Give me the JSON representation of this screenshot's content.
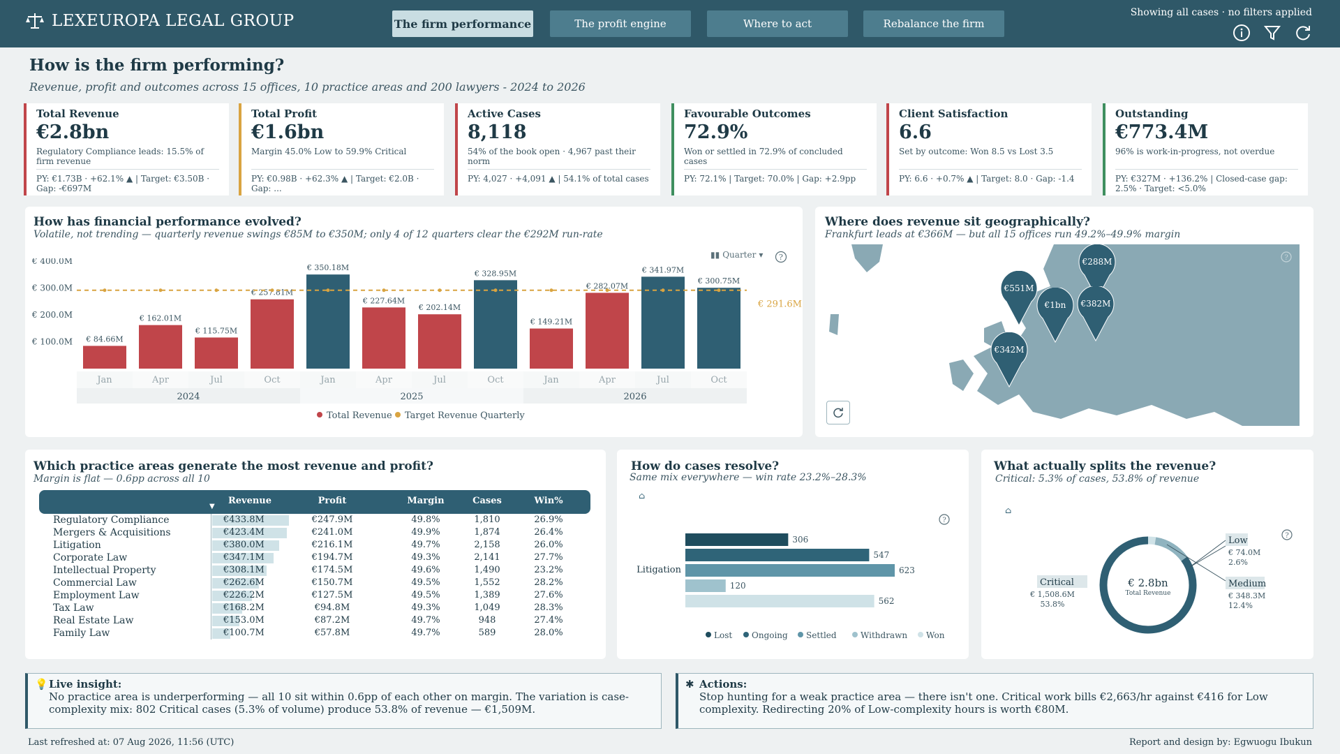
{
  "header": {
    "brand": "LEXEUROPA LEGAL GROUP",
    "tabs": [
      "The firm performance",
      "The profit engine",
      "Where to act",
      "Rebalance the firm"
    ],
    "status": "Showing all cases · no filters applied",
    "icons": [
      "info-icon",
      "filter-icon",
      "refresh-icon"
    ]
  },
  "page": {
    "title": "How is the firm performing?",
    "subtitle": "Revenue, profit and outcomes across 15 offices, 10 practice areas and 200 lawyers - 2024 to 2026"
  },
  "kpis": [
    {
      "label": "Total Revenue",
      "value": "€2.8bn",
      "note": "Regulatory Compliance leads: 15.5% of firm revenue",
      "py": "PY: €1.73B · +62.1% ▲ | Target: €3.50B · Gap: -€697M",
      "color": "#c0454a"
    },
    {
      "label": "Total Profit",
      "value": "€1.6bn",
      "note": "Margin 45.0% Low to 59.9% Critical",
      "py": "PY: €0.98B · +62.3% ▲ | Target: €2.0B · Gap: ...",
      "color": "#d9a441"
    },
    {
      "label": "Active Cases",
      "value": "8,118",
      "note": "54% of the book open · 4,967 past their norm",
      "py": "PY: 4,027 · +4,091 ▲ | 54.1% of total cases",
      "color": "#c0454a"
    },
    {
      "label": "Favourable Outcomes",
      "value": "72.9%",
      "note": "Won or settled in 72.9% of concluded cases",
      "py": "PY: 72.1% | Target: 70.0% | Gap: +2.9pp",
      "color": "#3f8f5f"
    },
    {
      "label": "Client Satisfaction",
      "value": "6.6",
      "note": "Set by outcome: Won 8.5 vs Lost 3.5",
      "py": "PY: 6.6 · +0.7% ▲ | Target: 8.0 · Gap: -1.4",
      "color": "#c0454a"
    },
    {
      "label": "Outstanding",
      "value": "€773.4M",
      "note": "96% is work-in-progress, not overdue",
      "py": "PY: €327M · +136.2% | Closed-case gap: 2.5% · Target: <5.0%",
      "color": "#3f8f5f"
    }
  ],
  "revenue_chart": {
    "title": "How has financial performance evolved?",
    "subtitle": "Volatile, not trending — quarterly revenue swings €85M to €350M; only 4 of 12 quarters clear the €292M run-rate",
    "granularity": "Quarter",
    "target_label": "€ 291.6M",
    "legend": [
      "Total Revenue",
      "Target Revenue Quarterly"
    ]
  },
  "chart_data": {
    "type": "bar",
    "categories": [
      "Jan",
      "Apr",
      "Jul",
      "Oct",
      "Jan",
      "Apr",
      "Jul",
      "Oct",
      "Jan",
      "Apr",
      "Jul",
      "Oct"
    ],
    "years": [
      "2024",
      "2025",
      "2026"
    ],
    "values": [
      84.66,
      162.01,
      115.75,
      257.81,
      350.18,
      227.64,
      202.14,
      328.95,
      149.21,
      282.07,
      341.97,
      300.75
    ],
    "labels": [
      "€ 84.66M",
      "€ 162.01M",
      "€ 115.75M",
      "€ 257.81M",
      "€ 350.18M",
      "€ 227.64M",
      "€ 202.14M",
      "€ 328.95M",
      "€ 149.21M",
      "€ 282.07M",
      "€ 341.97M",
      "€ 300.75M"
    ],
    "target": 291.6,
    "yticks": [
      "€ 100.0M",
      "€ 200.0M",
      "€ 300.0M",
      "€ 400.0M"
    ],
    "ylim": [
      0,
      400
    ],
    "colors": {
      "below": "#c0454a",
      "above": "#2f5f73",
      "target": "#d9a441"
    }
  },
  "map": {
    "title": "Where does revenue sit geographically?",
    "subtitle": "Frankfurt leads at €366M — but all 15 offices run 49.2%–49.9% margin",
    "pins": [
      "€288M",
      "€551M",
      "€1bn",
      "€382M",
      "€342M"
    ]
  },
  "practice": {
    "title": "Which practice areas generate the most revenue and profit?",
    "subtitle": "Margin is flat — 0.6pp across all 10",
    "columns": [
      "Revenue",
      "Profit",
      "Margin",
      "Cases",
      "Win%"
    ],
    "rows": [
      {
        "name": "Regulatory Compliance",
        "revenue": "€433.8M",
        "profit": "€247.9M",
        "margin": "49.8%",
        "cases": "1,810",
        "win": "26.9%",
        "rev": 433.8
      },
      {
        "name": "Mergers & Acquisitions",
        "revenue": "€423.4M",
        "profit": "€241.0M",
        "margin": "49.9%",
        "cases": "1,874",
        "win": "26.4%",
        "rev": 423.4
      },
      {
        "name": "Litigation",
        "revenue": "€380.0M",
        "profit": "€216.1M",
        "margin": "49.7%",
        "cases": "2,158",
        "win": "26.0%",
        "rev": 380.0
      },
      {
        "name": "Corporate Law",
        "revenue": "€347.1M",
        "profit": "€194.7M",
        "margin": "49.3%",
        "cases": "2,141",
        "win": "27.7%",
        "rev": 347.1
      },
      {
        "name": "Intellectual Property",
        "revenue": "€308.1M",
        "profit": "€174.5M",
        "margin": "49.6%",
        "cases": "1,490",
        "win": "23.2%",
        "rev": 308.1
      },
      {
        "name": "Commercial Law",
        "revenue": "€262.6M",
        "profit": "€150.7M",
        "margin": "49.5%",
        "cases": "1,552",
        "win": "28.2%",
        "rev": 262.6
      },
      {
        "name": "Employment Law",
        "revenue": "€226.2M",
        "profit": "€127.5M",
        "margin": "49.5%",
        "cases": "1,389",
        "win": "27.6%",
        "rev": 226.2
      },
      {
        "name": "Tax Law",
        "revenue": "€168.2M",
        "profit": "€94.8M",
        "margin": "49.3%",
        "cases": "1,049",
        "win": "28.3%",
        "rev": 168.2
      },
      {
        "name": "Real Estate Law",
        "revenue": "€153.0M",
        "profit": "€87.2M",
        "margin": "49.7%",
        "cases": "948",
        "win": "27.4%",
        "rev": 153.0
      },
      {
        "name": "Family Law",
        "revenue": "€100.7M",
        "profit": "€57.8M",
        "margin": "49.7%",
        "cases": "589",
        "win": "28.0%",
        "rev": 100.7
      }
    ]
  },
  "cases": {
    "title": "How do cases resolve?",
    "subtitle": "Same mix everywhere — win rate 23.2%–28.3%",
    "category": "Litigation",
    "bars": [
      {
        "name": "Lost",
        "value": 306,
        "color": "#1f4d5e"
      },
      {
        "name": "Ongoing",
        "value": 547,
        "color": "#2f6478"
      },
      {
        "name": "Settled",
        "value": 623,
        "color": "#5f95a8"
      },
      {
        "name": "Withdrawn",
        "value": 120,
        "color": "#9fc2cd"
      },
      {
        "name": "Won",
        "value": 562,
        "color": "#cfe2e7"
      }
    ],
    "legend": [
      "Lost",
      "Ongoing",
      "Settled",
      "Withdrawn",
      "Won"
    ]
  },
  "split": {
    "title": "What actually splits the revenue?",
    "subtitle": "Critical: 5.3% of cases, 53.8% of revenue",
    "center_value": "€ 2.8bn",
    "center_label": "Total Revenue",
    "segments": [
      {
        "name": "Critical",
        "value": "€ 1,508.6M",
        "pct": "53.8%",
        "share": 53.8,
        "color": "#2f5f73"
      },
      {
        "name": "Low",
        "value": "€ 74.0M",
        "pct": "2.6%",
        "share": 2.6,
        "color": "#cfe2e7"
      },
      {
        "name": "Medium",
        "value": "€ 348.3M",
        "pct": "12.4%",
        "share": 12.4,
        "color": "#8fb3bf"
      }
    ]
  },
  "insight": {
    "label": "Live insight:",
    "text": "No practice area is underperforming — all 10 sit within 0.6pp of each other on margin. The variation is case-complexity mix: 802 Critical cases (5.3% of volume) produce 53.8% of revenue — €1,509M."
  },
  "actions": {
    "label": "Actions:",
    "text": "Stop hunting for a weak practice area — there isn't one. Critical work bills €2,663/hr against €416 for Low complexity. Redirecting 20% of Low-complexity hours is worth €80M."
  },
  "footer": {
    "refreshed": "Last refreshed at: 07 Aug 2026, 11:56 (UTC)",
    "credit": "Report and design by: Egwuogu Ibukun"
  }
}
